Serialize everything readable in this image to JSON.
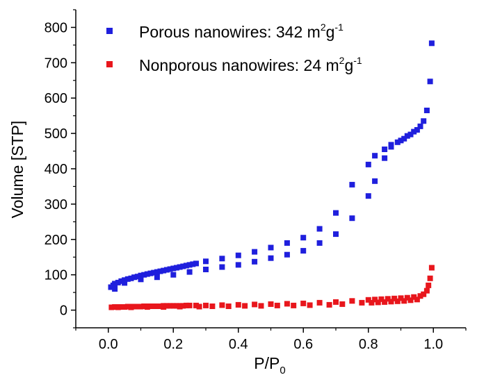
{
  "chart_data": {
    "type": "scatter",
    "xlabel": "P/P",
    "xlabel_sub": "0",
    "ylabel": "Volume [STP]",
    "xlim": [
      -0.1,
      1.1
    ],
    "ylim": [
      -50,
      850
    ],
    "xticks": [
      "0.0",
      "0.2",
      "0.4",
      "0.6",
      "0.8",
      "1.0"
    ],
    "yticks": [
      "0",
      "100",
      "200",
      "300",
      "400",
      "500",
      "600",
      "700",
      "800"
    ],
    "grid": false,
    "legend_position": "top-left",
    "series": [
      {
        "name": "Porous nanowires: 342 m",
        "name_sup1": "2",
        "name_mid": "g",
        "name_sup2": "-1",
        "color": "#1f1fdd",
        "x": [
          0.008,
          0.015,
          0.02,
          0.03,
          0.04,
          0.05,
          0.06,
          0.07,
          0.08,
          0.09,
          0.1,
          0.11,
          0.12,
          0.13,
          0.14,
          0.15,
          0.16,
          0.17,
          0.18,
          0.19,
          0.2,
          0.21,
          0.22,
          0.23,
          0.24,
          0.25,
          0.26,
          0.27,
          0.3,
          0.35,
          0.4,
          0.45,
          0.5,
          0.55,
          0.6,
          0.65,
          0.7,
          0.75,
          0.8,
          0.82,
          0.85,
          0.87,
          0.9,
          0.92,
          0.94,
          0.96,
          0.97,
          0.98,
          0.99,
          0.995,
          0.95,
          0.93,
          0.91,
          0.89,
          0.87,
          0.85,
          0.82,
          0.8,
          0.75,
          0.7,
          0.65,
          0.6,
          0.55,
          0.5,
          0.45,
          0.4,
          0.35,
          0.3,
          0.25,
          0.2,
          0.15,
          0.1,
          0.05,
          0.02
        ],
        "y": [
          65,
          70,
          75,
          78,
          82,
          85,
          88,
          90,
          93,
          95,
          98,
          100,
          102,
          104,
          106,
          108,
          110,
          112,
          114,
          116,
          118,
          120,
          122,
          124,
          126,
          128,
          130,
          132,
          138,
          146,
          155,
          165,
          177,
          190,
          205,
          230,
          275,
          355,
          412,
          437,
          455,
          468,
          480,
          493,
          505,
          520,
          535,
          565,
          647,
          755,
          510,
          497,
          485,
          475,
          462,
          430,
          365,
          323,
          260,
          215,
          190,
          168,
          157,
          147,
          137,
          128,
          122,
          115,
          108,
          100,
          93,
          87,
          77,
          60
        ]
      },
      {
        "name": "Nonporous nanowires: 24 m",
        "name_sup1": "2",
        "name_mid": "g",
        "name_sup2": "-1",
        "color": "#e8161c",
        "x": [
          0.01,
          0.02,
          0.03,
          0.04,
          0.05,
          0.06,
          0.07,
          0.08,
          0.09,
          0.1,
          0.11,
          0.12,
          0.13,
          0.14,
          0.15,
          0.16,
          0.17,
          0.18,
          0.19,
          0.2,
          0.21,
          0.22,
          0.23,
          0.24,
          0.25,
          0.27,
          0.3,
          0.35,
          0.4,
          0.45,
          0.5,
          0.55,
          0.6,
          0.65,
          0.7,
          0.75,
          0.8,
          0.82,
          0.84,
          0.86,
          0.88,
          0.9,
          0.92,
          0.94,
          0.96,
          0.97,
          0.98,
          0.985,
          0.99,
          0.995,
          0.95,
          0.93,
          0.91,
          0.89,
          0.87,
          0.85,
          0.83,
          0.81,
          0.78,
          0.72,
          0.68,
          0.62,
          0.57,
          0.52,
          0.47,
          0.42,
          0.37,
          0.32,
          0.28,
          0.22,
          0.17,
          0.12,
          0.07,
          0.03
        ],
        "y": [
          8,
          9,
          9,
          9,
          9,
          10,
          10,
          10,
          10,
          10,
          11,
          11,
          11,
          11,
          11,
          11,
          12,
          12,
          12,
          12,
          12,
          12,
          12,
          13,
          13,
          13,
          13,
          14,
          15,
          16,
          17,
          18,
          19,
          21,
          23,
          26,
          29,
          30,
          31,
          32,
          33,
          34,
          35,
          37,
          40,
          45,
          55,
          70,
          90,
          120,
          30,
          28,
          26,
          25,
          24,
          23,
          22,
          21,
          21,
          17,
          15,
          14,
          13,
          13,
          12,
          12,
          11,
          11,
          10,
          10,
          9,
          9,
          8,
          8
        ]
      }
    ]
  }
}
